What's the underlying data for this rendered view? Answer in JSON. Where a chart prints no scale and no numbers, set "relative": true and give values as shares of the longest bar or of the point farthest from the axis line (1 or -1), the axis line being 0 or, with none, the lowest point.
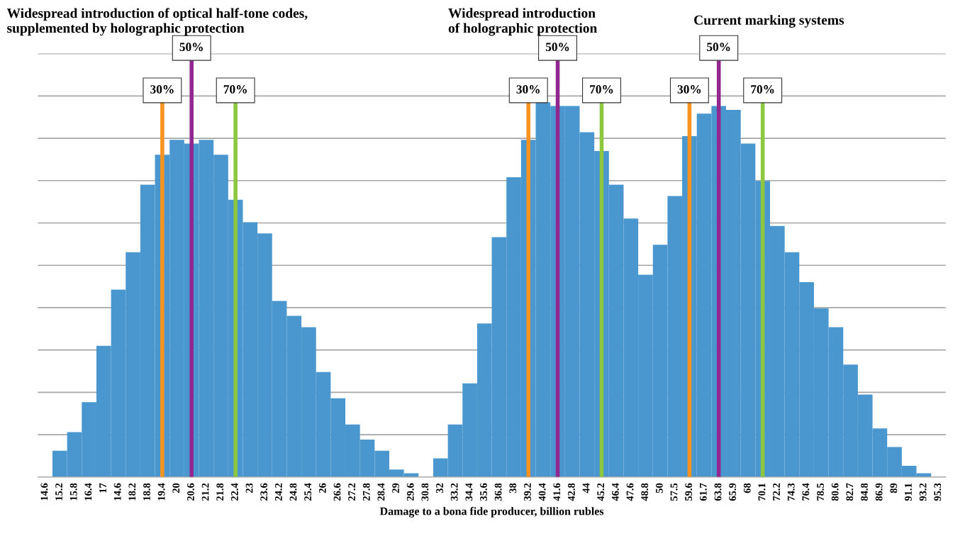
{
  "chart_data": {
    "type": "bar",
    "relative": true,
    "grid": "y",
    "legend": false,
    "color": "#4a97d0",
    "xlabel": "Damage to a bona fide producer, billion rubles",
    "annotations": [
      "Widespread introduction of optical half-tone codes,\nsupplemented by holographic protection",
      "Widespread introduction\nof holographic protection",
      "Current marking systems"
    ],
    "categories": [
      "14.6",
      "15.2",
      "15.8",
      "16.4",
      "17",
      "14.6",
      "18.2",
      "18.8",
      "19.4",
      "20",
      "20.6",
      "21.2",
      "21.8",
      "22.4",
      "23",
      "23.6",
      "24.2",
      "24.8",
      "25.4",
      "26",
      "26.6",
      "27.2",
      "27.8",
      "28.4",
      "29",
      "29.6",
      "30.8",
      "32",
      "33.2",
      "34.4",
      "35.6",
      "36.8",
      "38",
      "39.2",
      "40.4",
      "41.6",
      "42.8",
      "44",
      "45.2",
      "46.4",
      "47.6",
      "48.8",
      "50",
      "57.5",
      "59.6",
      "61.7",
      "63.8",
      "65.9",
      "68",
      "70.1",
      "72.2",
      "74.3",
      "76.4",
      "78.5",
      "80.6",
      "82.7",
      "84.8",
      "86.9",
      "89",
      "91.1",
      "93.2",
      "95.3"
    ],
    "values": [
      0,
      0.07,
      0.12,
      0.2,
      0.35,
      0.5,
      0.6,
      0.78,
      0.86,
      0.9,
      0.89,
      0.9,
      0.86,
      0.74,
      0.68,
      0.65,
      0.47,
      0.43,
      0.4,
      0.28,
      0.21,
      0.14,
      0.1,
      0.07,
      0.02,
      0.01,
      0,
      0.05,
      0.14,
      0.25,
      0.41,
      0.64,
      0.8,
      0.9,
      1,
      0.99,
      0.99,
      0.92,
      0.87,
      0.78,
      0.69,
      0.54,
      0.62,
      0.75,
      0.91,
      0.97,
      0.99,
      0.98,
      0.89,
      0.79,
      0.67,
      0.6,
      0.52,
      0.45,
      0.4,
      0.3,
      0.22,
      0.13,
      0.08,
      0.03,
      0.01,
      0
    ],
    "ref_lines": [
      {
        "axis": "x",
        "value": "19.4",
        "label": "30%",
        "color": "#f7931e"
      },
      {
        "axis": "x",
        "value": "20.6",
        "label": "50%",
        "color": "#92278f"
      },
      {
        "axis": "x",
        "value": "22.4",
        "label": "70%",
        "color": "#8dc63f"
      },
      {
        "axis": "x",
        "value": "39.2",
        "label": "30%",
        "color": "#f7931e"
      },
      {
        "axis": "x",
        "value": "41.6",
        "label": "50%",
        "color": "#92278f"
      },
      {
        "axis": "x",
        "value": "45.2",
        "label": "70%",
        "color": "#8dc63f"
      },
      {
        "axis": "x",
        "value": "59.6",
        "label": "30%",
        "color": "#f7931e"
      },
      {
        "axis": "x",
        "value": "63.8",
        "label": "50%",
        "color": "#92278f"
      },
      {
        "axis": "x",
        "value": "70.1",
        "label": "70%",
        "color": "#8dc63f"
      }
    ]
  }
}
